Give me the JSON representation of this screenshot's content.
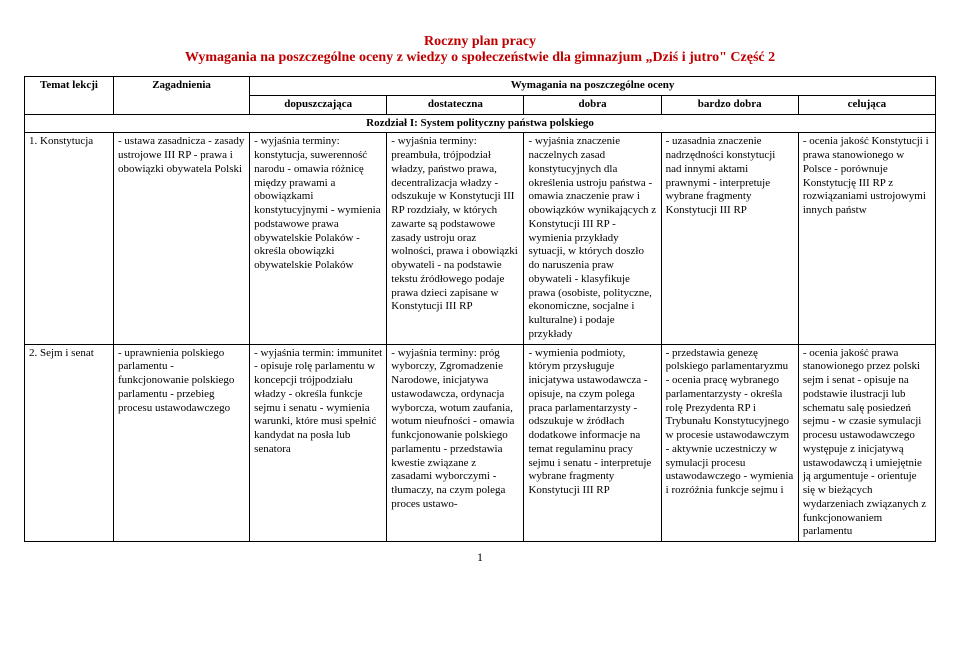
{
  "title_line1": "Roczny plan pracy",
  "title_line2": "Wymagania na poszczególne oceny z wiedzy o społeczeństwie dla gimnazjum „Dziś i jutro\" Część 2",
  "headers": {
    "topic": "Temat lekcji",
    "issues": "Zagadnienia",
    "grades_header": "Wymagania na poszczególne oceny",
    "g1": "dopuszczająca",
    "g2": "dostateczna",
    "g3": "dobra",
    "g4": "bardzo dobra",
    "g5": "celująca"
  },
  "section1": "Rozdział I: System polityczny państwa polskiego",
  "rows": [
    {
      "topic": "1. Konstytucja",
      "issues": "- ustawa zasadnicza\n- zasady ustrojowe III RP\n- prawa i obowiązki obywatela Polski",
      "g1": "- wyjaśnia terminy: konstytucja, suwerenność narodu\n- omawia różnicę między prawami a obowiązkami konstytucyjnymi\n- wymienia podstawowe prawa obywatelskie Polaków\n- określa obowiązki obywatelskie Polaków",
      "g2": "- wyjaśnia terminy: preambuła, trójpodział władzy, państwo prawa, decentralizacja władzy\n- odszukuje w Konstytucji III RP rozdziały, w których zawarte są podstawowe zasady ustroju oraz wolności, prawa i obowiązki obywateli\n- na podstawie tekstu źródłowego podaje prawa dzieci zapisane w Konstytucji III RP",
      "g3": "- wyjaśnia znaczenie naczelnych zasad konstytucyjnych dla określenia ustroju państwa\n- omawia znaczenie praw i obowiązków wynikających z Konstytucji III RP\n- wymienia przykłady sytuacji, w których doszło do naruszenia praw obywateli\n- klasyfikuje prawa (osobiste, polityczne, ekonomiczne, socjalne i kulturalne) i podaje przykłady",
      "g4": "- uzasadnia znaczenie nadrzędności konstytucji nad innymi aktami prawnymi\n- interpretuje wybrane fragmenty Konstytucji III RP",
      "g5": "- ocenia jakość Konstytucji i prawa stanowionego w Polsce\n- porównuje Konstytucję III RP z rozwiązaniami ustrojowymi innych państw"
    },
    {
      "topic": "2. Sejm i senat",
      "issues": "- uprawnienia polskiego parlamentu\n- funkcjonowanie polskiego parlamentu\n- przebieg procesu ustawodawczego",
      "g1": "- wyjaśnia termin: immunitet\n- opisuje rolę parlamentu w koncepcji trójpodziału władzy\n- określa funkcje sejmu i senatu\n- wymienia warunki, które musi spełnić kandydat na posła lub senatora",
      "g2": "- wyjaśnia terminy: próg wyborczy, Zgromadzenie Narodowe, inicjatywa ustawodawcza, ordynacja wyborcza, wotum zaufania, wotum nieufności\n- omawia funkcjonowanie polskiego parlamentu\n- przedstawia kwestie związane z zasadami wyborczymi\n- tłumaczy, na czym polega proces ustawo-",
      "g3": "- wymienia podmioty, którym przysługuje inicjatywa ustawodawcza\n- opisuje, na czym polega praca parlamentarzysty\n- odszukuje w źródłach dodatkowe informacje na temat regulaminu pracy sejmu i senatu\n- interpretuje wybrane fragmenty Konstytucji III RP",
      "g4": "- przedstawia genezę polskiego parlamentaryzmu\n- ocenia pracę wybranego parlamentarzysty\n- określa rolę Prezydenta RP i Trybunału Konstytucyjnego w procesie ustawodawczym\n- aktywnie uczestniczy w symulacji procesu ustawodawczego\n- wymienia i rozróżnia funkcje sejmu i",
      "g5": "- ocenia jakość prawa stanowionego przez polski sejm i senat\n- opisuje na podstawie ilustracji lub schematu salę posiedzeń sejmu\n- w czasie symulacji procesu ustawodawczego występuje z inicjatywą ustawodawczą i umiejętnie ją argumentuje\n- orientuje się w bieżących wydarzeniach związanych z funkcjonowaniem parlamentu"
    }
  ],
  "page_number": "1"
}
